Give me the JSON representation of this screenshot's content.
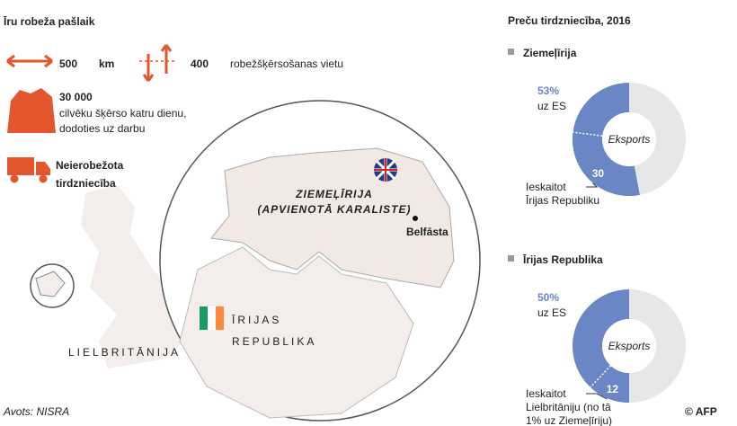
{
  "title": "Īru robeža pašlaik",
  "facts": [
    {
      "value": "500",
      "text": "km"
    },
    {
      "value": "400",
      "text": "robežšķērsošanas vietu"
    },
    {
      "value": "30 000",
      "lines": [
        "cilvēku šķērso katru dienu,",
        "dodoties uz darbu"
      ]
    },
    {
      "lines": [
        "Neierobežota",
        "tirdzniecība"
      ]
    }
  ],
  "map": {
    "ni": [
      "ZIEMEĻĪRIJA",
      "(APVIENOTĀ KARALISTE)"
    ],
    "city": "Belfāsta",
    "roi": [
      "ĪRIJAS",
      "REPUBLIKA"
    ],
    "gb": "LIELBRITĀNIJA"
  },
  "source": "Avots: NISRA",
  "credit": "© AFP",
  "trade_title": "Preču tirdzniecība, 2016",
  "chart_data": [
    {
      "type": "pie",
      "title": "Ziemeļīrija",
      "eu_share": 53,
      "eu_label": "53%",
      "eu_text": "uz ES",
      "center": "Eksports",
      "partner_share": 30,
      "note": [
        "Ieskaitot",
        "Īrijas Republiku"
      ],
      "color": "#6a86c4",
      "rest_color": "#e6e7e8"
    },
    {
      "type": "pie",
      "title": "Īrijas Republika",
      "eu_share": 50,
      "eu_label": "50%",
      "eu_text": "uz ES",
      "center": "Eksports",
      "partner_share": 12,
      "note": [
        "Ieskaitot",
        "Lielbritāniju (no tā",
        "1% uz Ziemeļīriju)"
      ],
      "color": "#6a86c4",
      "rest_color": "#e6e7e8"
    }
  ]
}
